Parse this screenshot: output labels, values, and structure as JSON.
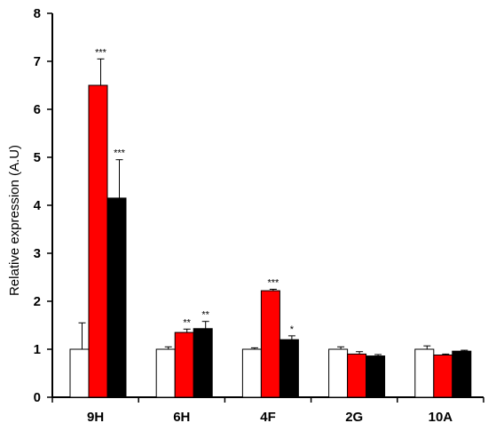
{
  "chart_data": {
    "type": "bar",
    "title": "",
    "xlabel": "",
    "ylabel": "Relative expression (A.U)",
    "ylim": [
      0,
      8
    ],
    "yticks": [
      "0",
      "1",
      "2",
      "3",
      "4",
      "5",
      "6",
      "7",
      "8"
    ],
    "categories": [
      "9H",
      "6H",
      "4F",
      "2G",
      "10A"
    ],
    "grid": false,
    "series": [
      {
        "color": "#ffffff",
        "values": [
          1.0,
          1.0,
          1.0,
          1.0,
          1.0
        ],
        "errors": [
          0.55,
          0.05,
          0.03,
          0.05,
          0.07
        ],
        "annotations": [
          "",
          "",
          "",
          "",
          ""
        ]
      },
      {
        "color": "#ff0000",
        "values": [
          6.5,
          1.35,
          2.22,
          0.9,
          0.88
        ],
        "errors": [
          0.55,
          0.07,
          0.03,
          0.05,
          0.02
        ],
        "annotations": [
          "***",
          "**",
          "***",
          "",
          ""
        ]
      },
      {
        "color": "#000000",
        "values": [
          4.15,
          1.43,
          1.2,
          0.86,
          0.96
        ],
        "errors": [
          0.8,
          0.15,
          0.08,
          0.03,
          0.02
        ],
        "annotations": [
          "***",
          "**",
          "*",
          "",
          ""
        ]
      }
    ]
  }
}
